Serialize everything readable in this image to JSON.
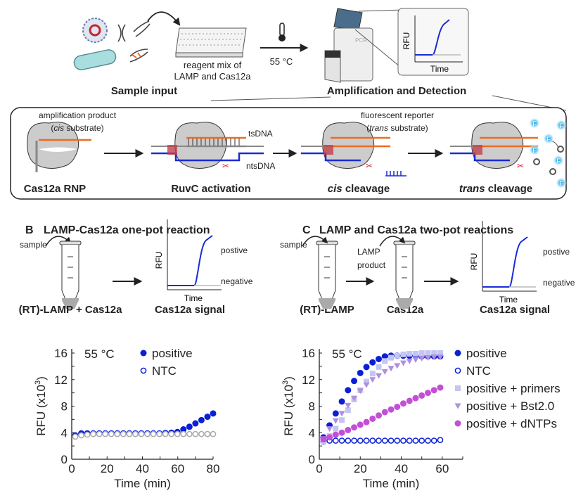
{
  "panel_a": {
    "reagent_line1": "reagent mix of",
    "reagent_line2": "LAMP and Cas12a",
    "temperature": "55 °C",
    "sample_input": "Sample input",
    "amp_detection": "Amplification and Detection",
    "inset_ylabel": "RFU",
    "inset_xlabel": "Time",
    "instrument_label": "PCR",
    "amp_product": "amplification product",
    "cis_substrate_open": "(",
    "cis_substrate_em": "cis",
    "cis_substrate_rest": " substrate)",
    "tsdna": "tsDNA",
    "ntsdna": "ntsDNA",
    "reporter": "fluorescent reporter",
    "trans_substrate_open": "(",
    "trans_substrate_em": "trans",
    "trans_substrate_rest": " substrate)",
    "fluor_letter": "F",
    "steps": [
      "Cas12a RNP",
      "RuvC activation",
      "cis",
      "cleavage",
      "trans",
      "cleavage"
    ]
  },
  "panel_b": {
    "letter": "B",
    "title": "LAMP-Cas12a one-pot reaction",
    "sample": "sample",
    "rfu": "RFU",
    "time": "Time",
    "positive": "postive",
    "negative": "negative",
    "tube_label": "(RT)-LAMP + Cas12a",
    "signal_label": "Cas12a signal"
  },
  "panel_c": {
    "letter": "C",
    "title": "LAMP and Cas12a two-pot reactions",
    "sample": "sample",
    "lamp_product_1": "LAMP",
    "lamp_product_2": "product",
    "rfu": "RFU",
    "time": "Time",
    "positive": "postive",
    "negative": "negative",
    "tube1_label": "(RT)-LAMP",
    "tube2_label": "Cas12a",
    "signal_label": "Cas12a signal"
  },
  "colors": {
    "positive": "#0a1fd6",
    "ntc_plot_b": "#aaaaaa",
    "primers": "#c3c6f2",
    "bst": "#b18ee0",
    "dntps": "#c24fd6",
    "orange": "#f06a22"
  },
  "chart_data": [
    {
      "type": "scatter",
      "annotation": "55 °C",
      "xlabel": "Time (min)",
      "ylabel": "RFU (x10",
      "ylabel_sup": "3",
      "ylabel_close": ")",
      "xlim": [
        0,
        80
      ],
      "ylim": [
        0,
        16
      ],
      "xticks": [
        0,
        20,
        40,
        60,
        80
      ],
      "yticks": [
        0,
        4,
        8,
        12,
        16
      ],
      "legend_position": "top-right",
      "series": [
        {
          "name": "positive",
          "marker": "filled-circle",
          "x": [
            2,
            5.4,
            8.8,
            12.2,
            15.6,
            19,
            22.4,
            25.8,
            29.2,
            32.6,
            36,
            39.4,
            42.8,
            46.2,
            49.6,
            53,
            56.4,
            59.8,
            63.2,
            66.6,
            70,
            73.4,
            76.8,
            80
          ],
          "y": [
            3.6,
            3.9,
            3.9,
            3.9,
            3.9,
            3.9,
            3.9,
            3.9,
            3.9,
            3.9,
            3.9,
            3.9,
            3.9,
            3.9,
            3.9,
            3.95,
            4.0,
            4.1,
            4.5,
            4.9,
            5.4,
            5.9,
            6.4,
            6.9
          ]
        },
        {
          "name": "NTC",
          "marker": "open-circle",
          "x": [
            2,
            5.4,
            8.8,
            12.2,
            15.6,
            19,
            22.4,
            25.8,
            29.2,
            32.6,
            36,
            39.4,
            42.8,
            46.2,
            49.6,
            53,
            56.4,
            59.8,
            63.2,
            66.6,
            70,
            73.4,
            76.8,
            80
          ],
          "y": [
            3.4,
            3.6,
            3.7,
            3.8,
            3.8,
            3.8,
            3.8,
            3.8,
            3.8,
            3.8,
            3.8,
            3.8,
            3.8,
            3.8,
            3.8,
            3.8,
            3.8,
            3.8,
            3.8,
            3.8,
            3.8,
            3.8,
            3.8,
            3.8
          ]
        }
      ]
    },
    {
      "type": "scatter",
      "annotation": "55 °C",
      "xlabel": "Time (min)",
      "ylabel": "RFU (x10",
      "ylabel_sup": "3",
      "ylabel_close": ")",
      "xlim": [
        0,
        70
      ],
      "ylim": [
        0,
        16
      ],
      "xticks": [
        0,
        20,
        40,
        60
      ],
      "yticks": [
        0,
        4,
        8,
        12,
        16
      ],
      "legend_position": "right",
      "x": [
        2,
        5,
        8,
        11,
        14,
        17,
        20,
        23,
        26,
        29,
        32,
        35,
        38,
        41,
        44,
        47,
        50,
        53,
        56,
        59
      ],
      "series": [
        {
          "name": "positive",
          "marker": "filled-circle",
          "y": [
            3.3,
            5.1,
            6.9,
            8.7,
            10.4,
            11.8,
            13.0,
            13.9,
            14.6,
            15.1,
            15.5,
            15.6,
            15.6,
            15.6,
            15.6,
            15.6,
            15.5,
            15.5,
            15.5,
            15.5
          ]
        },
        {
          "name": "NTC",
          "marker": "open-circle",
          "y": [
            2.6,
            2.8,
            2.8,
            2.8,
            2.8,
            2.8,
            2.8,
            2.8,
            2.8,
            2.8,
            2.8,
            2.8,
            2.8,
            2.8,
            2.8,
            2.8,
            2.8,
            2.8,
            2.8,
            2.9
          ]
        },
        {
          "name": "positive + primers",
          "marker": "square",
          "y": [
            2.6,
            3.5,
            4.6,
            5.9,
            7.4,
            9.0,
            10.4,
            11.7,
            12.9,
            13.9,
            14.8,
            15.3,
            15.6,
            15.8,
            15.9,
            15.9,
            16.0,
            16.0,
            16.0,
            16.0
          ]
        },
        {
          "name": "positive + Bst2.0",
          "marker": "triangle-down",
          "y": [
            3.1,
            4.6,
            5.8,
            6.9,
            8.1,
            9.2,
            10.3,
            11.2,
            12.0,
            12.6,
            13.2,
            13.7,
            14.1,
            14.5,
            14.8,
            15.0,
            15.2,
            15.3,
            15.4,
            15.4
          ]
        },
        {
          "name": "positive + dNTPs",
          "marker": "filled-circle",
          "y": [
            3.0,
            3.3,
            3.7,
            4.0,
            4.4,
            4.8,
            5.2,
            5.6,
            6.1,
            6.6,
            7.1,
            7.5,
            7.9,
            8.4,
            8.8,
            9.2,
            9.6,
            10.0,
            10.4,
            10.8
          ]
        }
      ]
    }
  ]
}
